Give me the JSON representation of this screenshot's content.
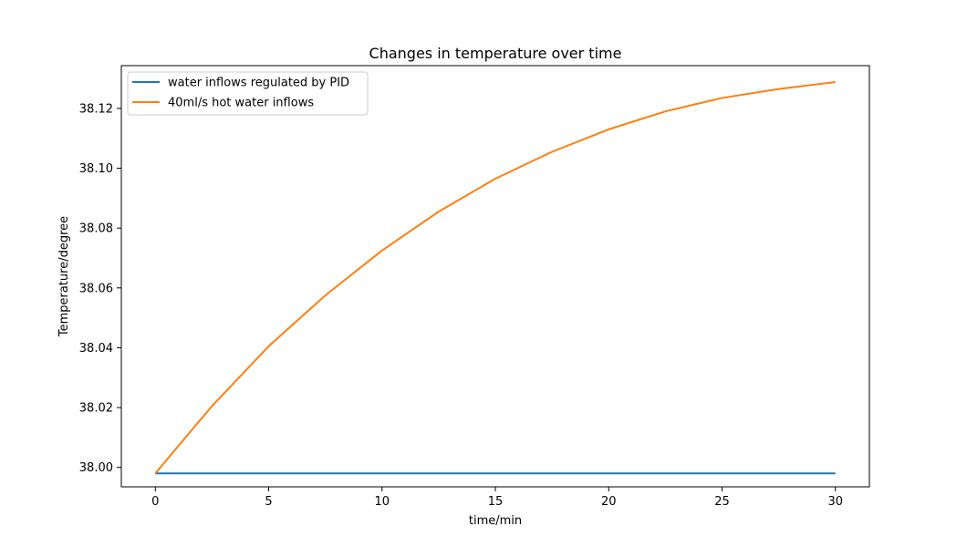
{
  "chart_data": {
    "type": "line",
    "title": "Changes in temperature over time",
    "xlabel": "time/min",
    "ylabel": "Temperature/degree",
    "xlim": [
      -1.5,
      31.5
    ],
    "ylim": [
      37.9935,
      38.1343
    ],
    "xticks": [
      0,
      5,
      10,
      15,
      20,
      25,
      30
    ],
    "yticks": [
      38.0,
      38.02,
      38.04,
      38.06,
      38.08,
      38.1,
      38.12
    ],
    "xtick_labels": [
      "0",
      "5",
      "10",
      "15",
      "20",
      "25",
      "30"
    ],
    "ytick_labels": [
      "38.00",
      "38.02",
      "38.04",
      "38.06",
      "38.08",
      "38.10",
      "38.12"
    ],
    "grid": false,
    "legend_position": "top-left",
    "x": [
      0,
      2.5,
      5,
      7.5,
      10,
      12.5,
      15,
      17.5,
      20,
      22.5,
      25,
      27.5,
      30
    ],
    "series": [
      {
        "name": "water inflows regulated by PID",
        "color": "#1f77b4",
        "values": [
          37.998,
          37.998,
          37.998,
          37.998,
          37.998,
          37.998,
          37.998,
          37.998,
          37.998,
          37.998,
          37.998,
          37.998,
          37.998
        ]
      },
      {
        "name": "40ml/s hot water inflows",
        "color": "#ff7f0e",
        "values": [
          37.998,
          38.0205,
          38.0405,
          38.0575,
          38.0725,
          38.0855,
          38.0965,
          38.1055,
          38.113,
          38.119,
          38.1235,
          38.1265,
          38.1288
        ]
      }
    ]
  }
}
